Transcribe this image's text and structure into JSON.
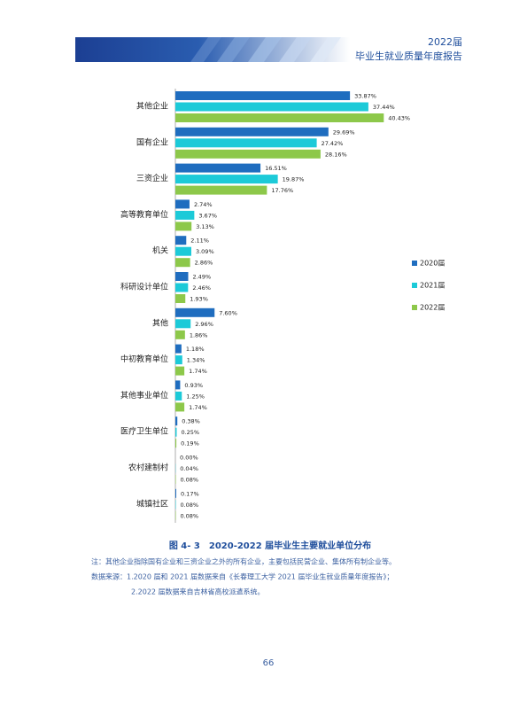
{
  "header": {
    "year": "2022届",
    "title": "毕业生就业质量年度报告"
  },
  "chart_data": {
    "type": "bar",
    "orientation": "horizontal",
    "legend": "right",
    "categories": [
      "其他企业",
      "国有企业",
      "三资企业",
      "高等教育单位",
      "机关",
      "科研设计单位",
      "其他",
      "中初教育单位",
      "其他事业单位",
      "医疗卫生单位",
      "农村建制村",
      "城镇社区"
    ],
    "series": [
      {
        "name": "2020届",
        "color": "#1f6dbf",
        "values": [
          33.87,
          29.69,
          16.51,
          2.74,
          2.11,
          2.49,
          7.6,
          1.18,
          0.93,
          0.38,
          0,
          0.17
        ],
        "value_labels": [
          "33.87%",
          "29.69%",
          "16.51%",
          "2.74%",
          "2.11%",
          "2.49%",
          "7.60%",
          "1.18%",
          "0.93%",
          "0.38%",
          "0.00%",
          "0.17%"
        ]
      },
      {
        "name": "2021届",
        "color": "#1ccad8",
        "values": [
          37.44,
          27.42,
          19.87,
          3.67,
          3.09,
          2.46,
          2.96,
          1.34,
          1.25,
          0.25,
          0.04,
          0.08
        ],
        "value_labels": [
          "37.44%",
          "27.42%",
          "19.87%",
          "3.67%",
          "3.09%",
          "2.46%",
          "2.96%",
          "1.34%",
          "1.25%",
          "0.25%",
          "0.04%",
          "0.08%"
        ]
      },
      {
        "name": "2022届",
        "color": "#8dc84a",
        "values": [
          40.43,
          28.16,
          17.76,
          3.13,
          2.86,
          1.93,
          1.86,
          1.74,
          1.74,
          0.19,
          0.08,
          0.08
        ],
        "value_labels": [
          "40.43%",
          "28.16%",
          "17.76%",
          "3.13%",
          "2.86%",
          "1.93%",
          "1.86%",
          "1.74%",
          "1.74%",
          "0.19%",
          "0.08%",
          "0.08%"
        ]
      }
    ]
  },
  "caption": "图 4- 3　2020-2022 届毕业生主要就业单位分布",
  "notes": [
    "注：其他企业指除国有企业和三资企业之外的所有企业，主要包括民营企业、集体所有制企业等。",
    "数据来源：1.2020 届和 2021 届数据来自《长春理工大学 2021 届毕业生就业质量年度报告》；",
    "2.2022 届数据来自吉林省高校派遣系统。"
  ],
  "page_number": "66"
}
